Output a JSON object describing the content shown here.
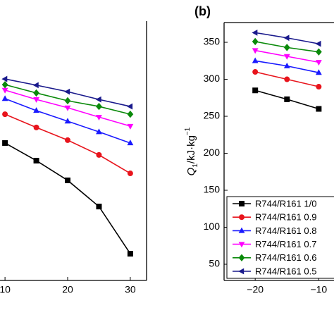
{
  "chart_data": [
    {
      "type": "line",
      "x": [
        10,
        15,
        20,
        25,
        30
      ],
      "xlim": [
        9.2,
        32.6
      ],
      "xticks": [
        10,
        20,
        30
      ],
      "ylim": [
        0,
        100
      ],
      "series": [
        {
          "name": "R744/R161 1/0",
          "color": "#000000",
          "marker": "square",
          "values": [
            53,
            46.2,
            38.6,
            28.5,
            10.3
          ]
        },
        {
          "name": "R744/R161 0.9",
          "color": "#e8141c",
          "marker": "circle",
          "values": [
            64.1,
            59,
            54.1,
            48.4,
            41.3
          ]
        },
        {
          "name": "R744/R161 0.8",
          "color": "#1a1aff",
          "marker": "triangle-up",
          "values": [
            70.1,
            65.5,
            61.4,
            57.3,
            53
          ]
        },
        {
          "name": "R744/R161 0.7",
          "color": "#ff00ff",
          "marker": "triangle-down",
          "values": [
            73.4,
            69.8,
            66.6,
            63,
            59.5
          ]
        },
        {
          "name": "R744/R161 0.6",
          "color": "#0a8a0a",
          "marker": "diamond",
          "values": [
            75.5,
            72.3,
            69.3,
            67.1,
            64.1
          ]
        },
        {
          "name": "R744/R161 0.5",
          "color": "#1a1a8c",
          "marker": "triangle-left",
          "values": [
            77.7,
            75.3,
            72.8,
            69.8,
            67.1
          ]
        }
      ]
    },
    {
      "type": "line",
      "title": "(b)",
      "ylabel": [
        "Q",
        "1",
        "/kJ·kg",
        "−1"
      ],
      "x": [
        -20,
        -15,
        -10
      ],
      "xlim": [
        -24.9,
        -7.6
      ],
      "xticks": [
        {
          "value": -20,
          "label": "−20"
        },
        {
          "value": -10,
          "label": "−10"
        }
      ],
      "ylim": [
        28.1,
        376.7
      ],
      "yticks": [
        50,
        100,
        150,
        200,
        250,
        300,
        350
      ],
      "legend": "lower right",
      "series": [
        {
          "name": "R744/R161 1/0",
          "color": "#000000",
          "marker": "square",
          "values": [
            285,
            273,
            260
          ]
        },
        {
          "name": "R744/R161 0.9",
          "color": "#e8141c",
          "marker": "circle",
          "values": [
            310,
            300,
            290
          ]
        },
        {
          "name": "R744/R161 0.8",
          "color": "#1a1aff",
          "marker": "triangle-up",
          "values": [
            325,
            318,
            309
          ]
        },
        {
          "name": "R744/R161 0.7",
          "color": "#ff00ff",
          "marker": "triangle-down",
          "values": [
            339,
            331,
            323
          ]
        },
        {
          "name": "R744/R161 0.6",
          "color": "#0a8a0a",
          "marker": "diamond",
          "values": [
            351,
            343,
            337
          ]
        },
        {
          "name": "R744/R161 0.5",
          "color": "#1a1a8c",
          "marker": "triangle-left",
          "values": [
            363,
            356,
            348
          ]
        }
      ]
    }
  ]
}
